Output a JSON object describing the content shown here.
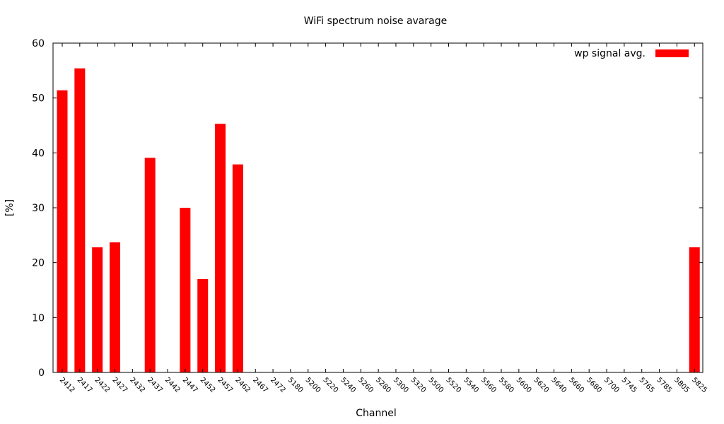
{
  "chart_data": {
    "type": "bar",
    "title": "WiFi spectrum noise avarage",
    "xlabel": "Channel",
    "ylabel": "[%]",
    "ylim": [
      0,
      60
    ],
    "yticks": [
      "0",
      "10",
      "20",
      "30",
      "40",
      "50",
      "60"
    ],
    "legend_position": "top-right",
    "grid": false,
    "categories": [
      "2412",
      "2417",
      "2422",
      "2427",
      "2432",
      "2437",
      "2442",
      "2447",
      "2452",
      "2457",
      "2462",
      "2467",
      "2472",
      "5180",
      "5200",
      "5220",
      "5240",
      "5260",
      "5280",
      "5300",
      "5320",
      "5500",
      "5520",
      "5540",
      "5560",
      "5580",
      "5600",
      "5620",
      "5640",
      "5660",
      "5680",
      "5700",
      "5745",
      "5765",
      "5785",
      "5805",
      "5825"
    ],
    "series": [
      {
        "name": "wp signal avg.",
        "color": "#ff0000",
        "values": [
          51.4,
          55.4,
          22.8,
          23.7,
          0,
          39.1,
          0,
          30.0,
          17.0,
          45.3,
          37.9,
          0,
          0,
          0,
          0,
          0,
          0,
          0,
          0,
          0,
          0,
          0,
          0,
          0,
          0,
          0,
          0,
          0,
          0,
          0,
          0,
          0,
          0,
          0,
          0,
          0,
          22.8
        ]
      }
    ]
  }
}
